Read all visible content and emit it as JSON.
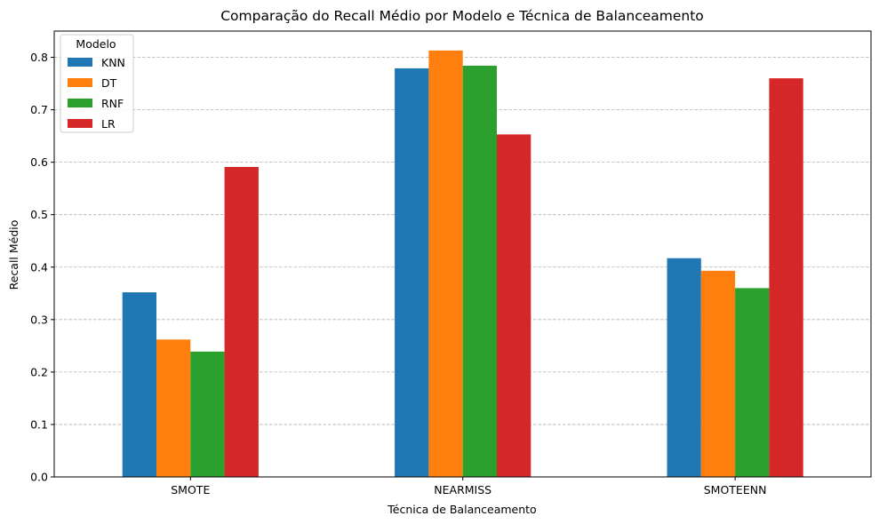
{
  "chart_data": {
    "type": "bar",
    "title": "Comparação do Recall Médio por Modelo e Técnica de Balanceamento",
    "xlabel": "Técnica de Balanceamento",
    "ylabel": "Recall Médio",
    "categories": [
      "SMOTE",
      "NEARMISS",
      "SMOTEENN"
    ],
    "ylim": [
      0,
      0.85
    ],
    "yticks": [
      0.0,
      0.1,
      0.2,
      0.3,
      0.4,
      0.5,
      0.6,
      0.7,
      0.8
    ],
    "ytick_labels": [
      "0.0",
      "0.1",
      "0.2",
      "0.3",
      "0.4",
      "0.5",
      "0.6",
      "0.7",
      "0.8"
    ],
    "grid": "y, dashed",
    "legend": {
      "title": "Modelo",
      "placement": "top-left"
    },
    "series": [
      {
        "name": "KNN",
        "color": "#1f77b4",
        "values": [
          0.352,
          0.779,
          0.417
        ]
      },
      {
        "name": "DT",
        "color": "#ff7f0e",
        "values": [
          0.262,
          0.813,
          0.393
        ]
      },
      {
        "name": "RNF",
        "color": "#2ca02c",
        "values": [
          0.239,
          0.784,
          0.36
        ]
      },
      {
        "name": "LR",
        "color": "#d62728",
        "values": [
          0.591,
          0.653,
          0.76
        ]
      }
    ]
  }
}
